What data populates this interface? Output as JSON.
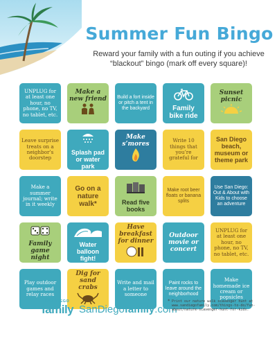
{
  "header": {
    "title": "Summer Fun Bingo",
    "subtitle": "Reward your family with a fun outing if you achieve “blackout” bingo (mark off every square)!"
  },
  "tiles": [
    {
      "text": "UNPLUG for at least one hour, no phone, no TV, no tablet, etc.",
      "color": "teal",
      "style": "serif",
      "icon": ""
    },
    {
      "text": "Make a new friend",
      "color": "green",
      "style": "script",
      "icon": "people-icon"
    },
    {
      "text": "Build a fort inside or pitch a tent in the backyard",
      "color": "teal",
      "style": "small",
      "icon": ""
    },
    {
      "text": "Family bike ride",
      "color": "teal",
      "style": "big",
      "icon": "bicycle-icon"
    },
    {
      "text": "Sunset picnic",
      "color": "green",
      "style": "script",
      "icon": "sun-icon"
    },
    {
      "text": "Leave surprise treats on a neighbor’s doorstep",
      "color": "yellow",
      "style": "serif",
      "icon": ""
    },
    {
      "text": "Splash pad or water park",
      "color": "teal",
      "style": "bold",
      "icon": "shower-icon"
    },
    {
      "text": "Make s’mores",
      "color": "navy",
      "style": "script",
      "icon": "flame-icon"
    },
    {
      "text": "Write 10 things that you’re grateful for",
      "color": "yellow",
      "style": "serif",
      "icon": ""
    },
    {
      "text": "San Diego beach, museum or theme park",
      "color": "yellow",
      "style": "bold",
      "icon": ""
    },
    {
      "text": "Make a summer journal; write in it weekly",
      "color": "teal",
      "style": "serif",
      "icon": ""
    },
    {
      "text": "Go on a nature walk*",
      "color": "yellow",
      "style": "big",
      "icon": ""
    },
    {
      "text": "Read five books",
      "color": "green",
      "style": "bold",
      "icon": "books-icon"
    },
    {
      "text": "Make root beer floats or banana splits",
      "color": "yellow",
      "style": "small",
      "icon": ""
    },
    {
      "text": "Use San Diego: Out & About with Kids to choose an adventure",
      "color": "navy",
      "style": "small",
      "icon": ""
    },
    {
      "text": "Family game night",
      "color": "green",
      "style": "script",
      "icon": "dice-icon"
    },
    {
      "text": "Water balloon fight!",
      "color": "teal",
      "style": "bold",
      "icon": "wave-icon"
    },
    {
      "text": "Have breakfast for dinner",
      "color": "yellow",
      "style": "script",
      "icon": "fork-icon"
    },
    {
      "text": "Outdoor movie or concert",
      "color": "teal",
      "style": "script",
      "icon": ""
    },
    {
      "text": "UNPLUG for at least one hour, no phone, no TV, no tablet, etc.",
      "color": "yellow",
      "style": "serif",
      "icon": ""
    },
    {
      "text": "Play outdoor games and relay races",
      "color": "teal",
      "style": "serif",
      "icon": ""
    },
    {
      "text": "Dig for sand crabs",
      "color": "yellow",
      "style": "script",
      "icon": "crab-icon"
    },
    {
      "text": "Write and mail a letter to someone",
      "color": "teal",
      "style": "serif",
      "icon": ""
    },
    {
      "text": "Paint rocks to leave around the neighborhood",
      "color": "teal",
      "style": "small",
      "icon": ""
    },
    {
      "text": "Make homemade ice cream or popsicles",
      "color": "teal",
      "style": "serif",
      "icon": ""
    }
  ],
  "footer": {
    "logo_top": "SAN DIEGO",
    "logo_family": "family",
    "url_prefix": "SanDiego",
    "url_bold": "family",
    "url_suffix": ".com",
    "note_star": "*",
    "note": "Print our nature walk scavenger hunt at www.sandiegofamily.com/things-to-do/fun-about/nature-scavenger-hunt-for-kids."
  },
  "colors": {
    "teal": "#3fa9bd",
    "yellow": "#f5d043",
    "green": "#a8cf7b",
    "navy": "#2e7d9f",
    "title": "#46a9d8"
  }
}
